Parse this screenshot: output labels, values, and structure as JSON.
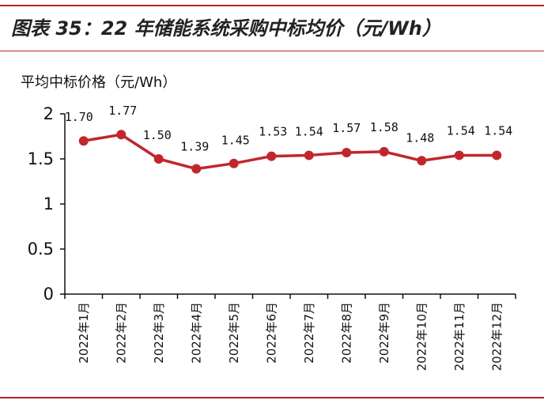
{
  "header": {
    "title": "图表 35：22 年储能系统采购中标均价（元/Wh）"
  },
  "chart_data": {
    "type": "line",
    "title": "图表 35：22 年储能系统采购中标均价（元/Wh）",
    "ylabel": "平均中标价格（元/Wh）",
    "xlabel": "",
    "categories": [
      "2022年1月",
      "2022年2月",
      "2022年3月",
      "2022年4月",
      "2022年5月",
      "2022年6月",
      "2022年7月",
      "2022年8月",
      "2022年9月",
      "2022年10月",
      "2022年11月",
      "2022年12月"
    ],
    "series": [
      {
        "values": [
          1.7,
          1.77,
          1.5,
          1.39,
          1.45,
          1.53,
          1.54,
          1.57,
          1.58,
          1.48,
          1.54,
          1.54
        ]
      }
    ],
    "data_labels": [
      "1.70",
      "1.77",
      "1.50",
      "1.39",
      "1.45",
      "1.53",
      "1.54",
      "1.57",
      "1.58",
      "1.48",
      "1.54",
      "1.54"
    ],
    "yticks": [
      "0",
      "0.5",
      "1",
      "1.5",
      "2"
    ],
    "ylim": [
      0,
      2
    ],
    "grid": false,
    "legend": "none",
    "line_color": "#c0272d"
  }
}
